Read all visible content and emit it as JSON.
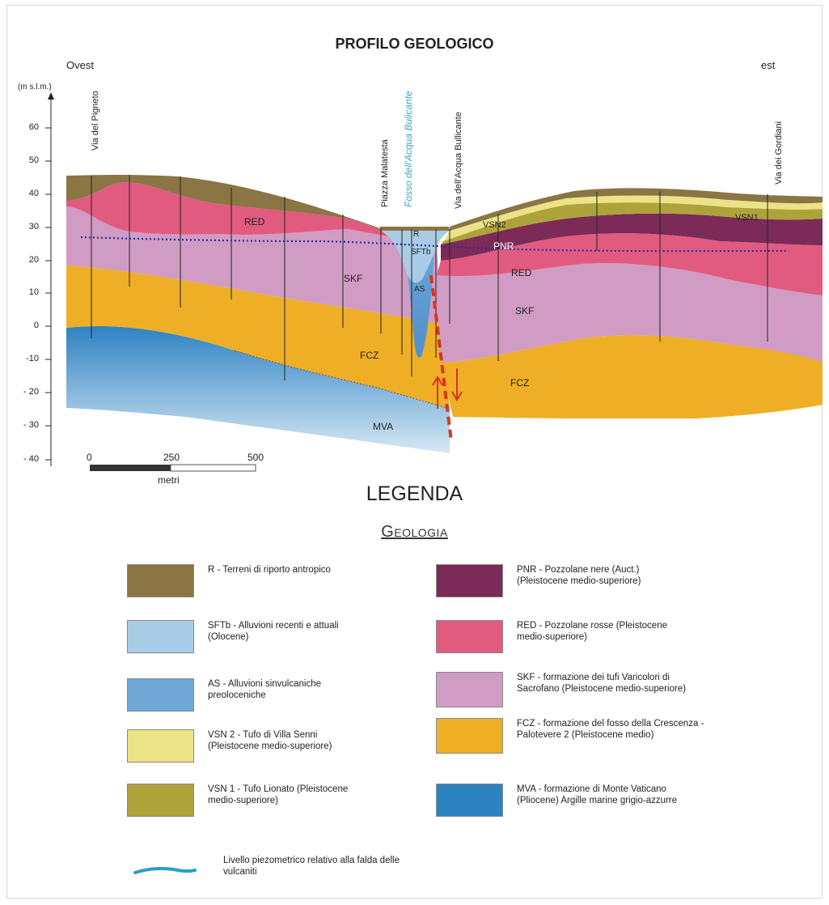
{
  "title": "PROFILO GEOLOGICO",
  "directions": {
    "west": "Ovest",
    "east": "est"
  },
  "y_axis": {
    "unit": "(m s.l.m.)",
    "ticks": [
      "60",
      "50",
      "40",
      "30",
      "20",
      "10",
      "0",
      "-10",
      "- 20",
      "- 30",
      "- 40"
    ]
  },
  "locations": {
    "pigneto": "Via del Pigneto",
    "malatesta": "Piazza Malatesta",
    "fosso": "Fosso dell'Acqua Bulicante",
    "bullicante": "Via dell'Acqua Bullicante",
    "gordiani": "Via dei Gordiani"
  },
  "section_labels": {
    "red_west": "RED",
    "skf_west": "SKF",
    "fcz_west": "FCZ",
    "mva": "MVA",
    "r": "R",
    "sftb": "SFTb",
    "as": "AS",
    "vsn2": "VSN2",
    "pnr": "PNR",
    "red_east": "RED",
    "skf_east": "SKF",
    "fcz_east": "FCZ",
    "vsn1": "VSN1"
  },
  "scale_bar": {
    "t0": "0",
    "t250": "250",
    "t500": "500",
    "unit": "metri"
  },
  "legend": {
    "title": "LEGENDA",
    "subtitle": "Geologia",
    "items": [
      {
        "id": "r",
        "color": "#8b7544",
        "text": "R - Terreni di riporto antropico"
      },
      {
        "id": "sftb",
        "color": "#a9cce6",
        "text": "SFTb - Alluvioni recenti e attuali (Olocene)"
      },
      {
        "id": "as",
        "color": "#6fa7d6",
        "text": "AS - Alluvioni sinvulcaniche preoloceniche"
      },
      {
        "id": "vsn2",
        "color": "#ebe385",
        "text": "VSN 2 - Tufo di Villa Senni (Pleistocene medio-superiore)"
      },
      {
        "id": "vsn1",
        "color": "#aea33a",
        "text": "VSN 1 - Tufo Lionato (Pleistocene medio-superiore)"
      },
      {
        "id": "pnr",
        "color": "#7c2a58",
        "text": "PNR - Pozzolane nere (Auct.) (Pleistocene medio-superiore)"
      },
      {
        "id": "red",
        "color": "#e15b80",
        "text": "RED - Pozzolane rosse (Pleistocene medio-superiore)"
      },
      {
        "id": "skf",
        "color": "#d09cc4",
        "text": "SKF - formazione dei tufi Varicolori di Sacrofano (Pleistocene medio-superiore)"
      },
      {
        "id": "fcz",
        "color": "#eeaf26",
        "text": "FCZ - formazione del fosso della Crescenza - Palotevere 2 (Pleistocene medio)"
      },
      {
        "id": "mva",
        "color": "#2d83c0",
        "text": "MVA - formazione di Monte Vaticano (Pliocene) Argille marine grigio-azzurre"
      }
    ],
    "piezometric": {
      "color": "#2a9fc7",
      "text": "Livello piezometrico relativo alla falda delle vulcaniti"
    }
  }
}
